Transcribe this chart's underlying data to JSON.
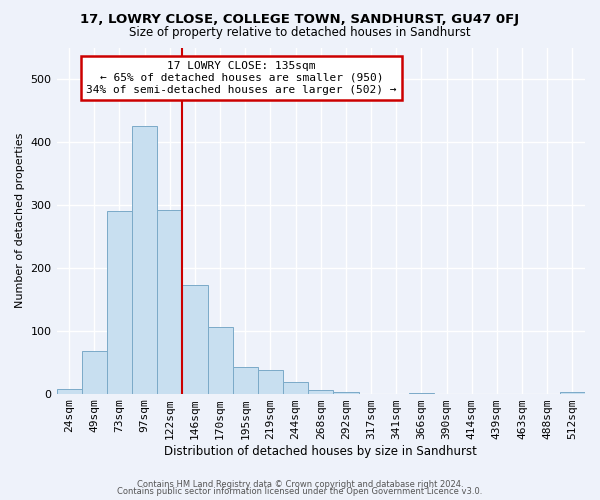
{
  "title": "17, LOWRY CLOSE, COLLEGE TOWN, SANDHURST, GU47 0FJ",
  "subtitle": "Size of property relative to detached houses in Sandhurst",
  "xlabel": "Distribution of detached houses by size in Sandhurst",
  "ylabel": "Number of detached properties",
  "bar_labels": [
    "24sqm",
    "49sqm",
    "73sqm",
    "97sqm",
    "122sqm",
    "146sqm",
    "170sqm",
    "195sqm",
    "219sqm",
    "244sqm",
    "268sqm",
    "292sqm",
    "317sqm",
    "341sqm",
    "366sqm",
    "390sqm",
    "414sqm",
    "439sqm",
    "463sqm",
    "488sqm",
    "512sqm"
  ],
  "bar_heights": [
    8,
    68,
    290,
    425,
    292,
    173,
    106,
    43,
    38,
    18,
    5,
    2,
    0,
    0,
    1,
    0,
    0,
    0,
    0,
    0,
    2
  ],
  "bar_color": "#c8dff0",
  "bar_edge_color": "#7baac8",
  "vline_color": "#cc0000",
  "annotation_title": "17 LOWRY CLOSE: 135sqm",
  "annotation_line1": "← 65% of detached houses are smaller (950)",
  "annotation_line2": "34% of semi-detached houses are larger (502) →",
  "annotation_box_facecolor": "white",
  "annotation_box_edgecolor": "#cc0000",
  "ylim": [
    0,
    550
  ],
  "footer1": "Contains HM Land Registry data © Crown copyright and database right 2024.",
  "footer2": "Contains public sector information licensed under the Open Government Licence v3.0.",
  "background_color": "#eef2fa",
  "grid_color": "white"
}
